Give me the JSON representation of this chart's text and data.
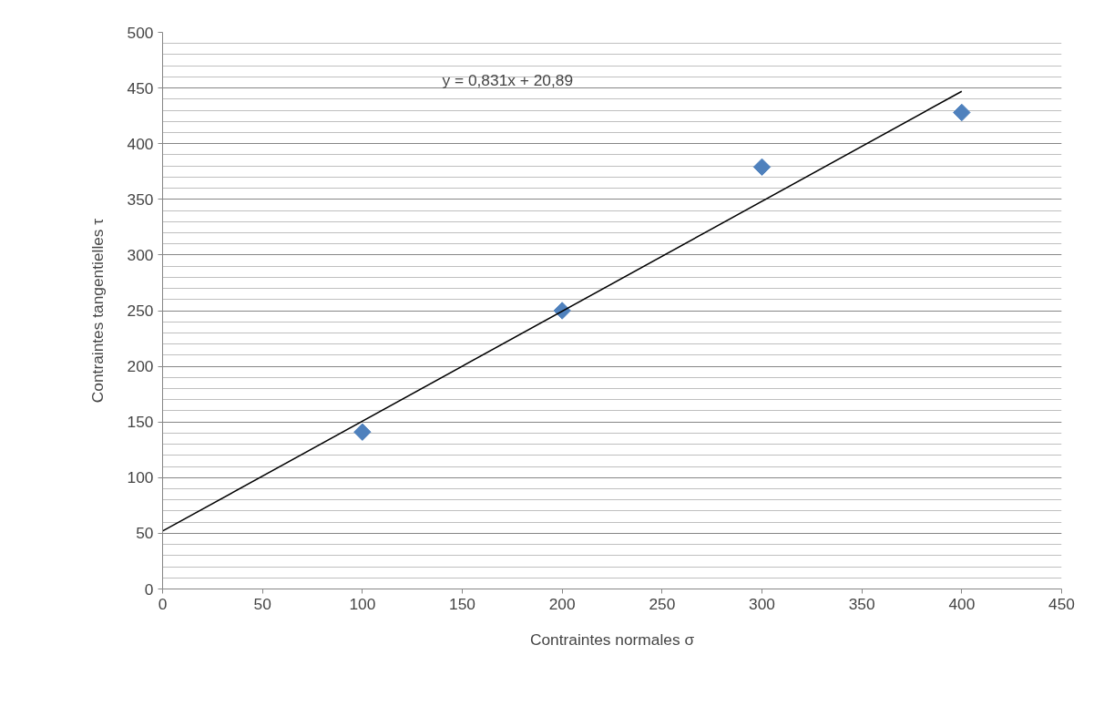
{
  "chart_data": {
    "type": "scatter",
    "xlabel": "Contraintes normales σ",
    "ylabel": "Contraintes tangentielles τ",
    "x": [
      100,
      200,
      300,
      400
    ],
    "series": [
      {
        "color": "#4f81bd",
        "marker": "diamond",
        "values": [
          141,
          250,
          379,
          428
        ]
      },
      {
        "type": "line",
        "color": "#000000",
        "marker": "none",
        "x": [
          0,
          400
        ],
        "values": [
          52,
          447
        ]
      }
    ],
    "annotations": [
      "y = 0,831x + 20,89"
    ],
    "xlim": [
      0,
      450
    ],
    "xticks": [
      0,
      50,
      100,
      150,
      200,
      250,
      300,
      350,
      400,
      450
    ],
    "ylim": [
      0,
      500
    ],
    "yticks": [
      0,
      50,
      100,
      150,
      200,
      250,
      300,
      350,
      400,
      450,
      500
    ],
    "grid": "y"
  }
}
